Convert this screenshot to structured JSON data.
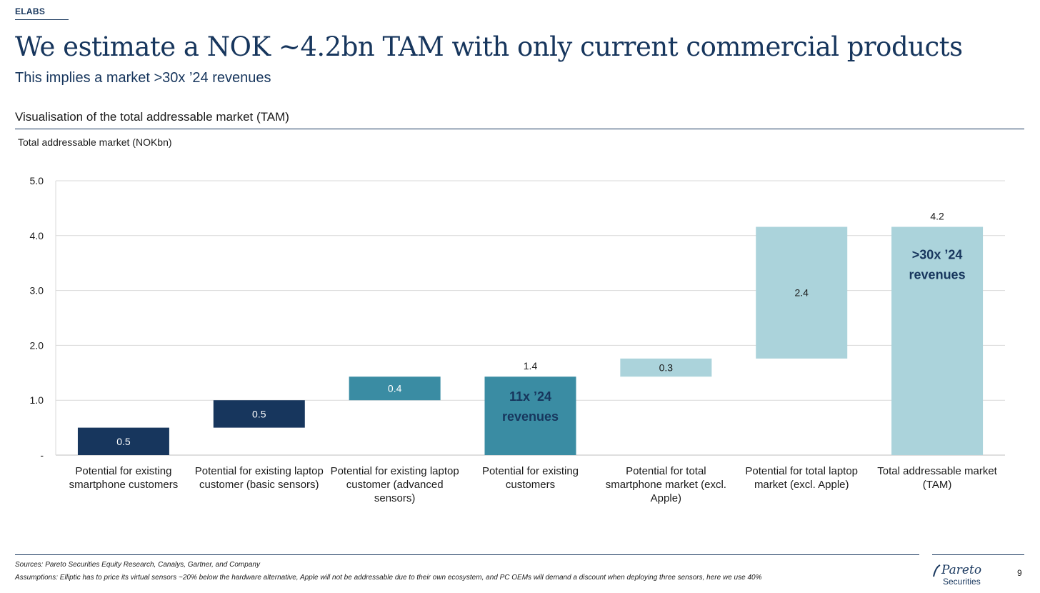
{
  "header": {
    "brand": "ELABS",
    "title": "We estimate a NOK ~4.2bn TAM with only current commercial products",
    "subtitle": "This implies a market >30x ’24 revenues",
    "section_title": "Visualisation of the total addressable market (TAM)"
  },
  "chart_data": {
    "type": "bar",
    "variant": "waterfall",
    "ylabel": "Total addressable market (NOKbn)",
    "ylim": [
      0,
      5
    ],
    "yticks": [
      0,
      1,
      2,
      3,
      4,
      5
    ],
    "ytick_labels": [
      "-",
      "1.0",
      "2.0",
      "3.0",
      "4.0",
      "5.0"
    ],
    "grid": true,
    "categories": [
      "Potential for existing smartphone customers",
      "Potential for existing laptop customer (basic sensors)",
      "Potential for existing laptop customer (advanced sensors)",
      "Potential for existing customers",
      "Potential for total smartphone market (excl. Apple)",
      "Potential for total laptop market (excl. Apple)",
      "Total addressable market (TAM)"
    ],
    "category_lines": [
      [
        "Potential for existing",
        "smartphone customers"
      ],
      [
        "Potential for existing laptop",
        "customer (basic sensors)"
      ],
      [
        "Potential for existing laptop",
        "customer (advanced",
        "sensors)"
      ],
      [
        "Potential for existing",
        "customers"
      ],
      [
        "Potential for total",
        "smartphone market (excl.",
        "Apple)"
      ],
      [
        "Potential for total laptop",
        "market (excl. Apple)"
      ],
      [
        "Total addressable market",
        "(TAM)"
      ]
    ],
    "bars": [
      {
        "base": 0.0,
        "value": 0.5,
        "label": "0.5",
        "label_pos": "inside",
        "color": "#17365d"
      },
      {
        "base": 0.5,
        "value": 0.5,
        "label": "0.5",
        "label_pos": "inside",
        "color": "#17365d"
      },
      {
        "base": 1.0,
        "value": 0.43,
        "label": "0.4",
        "label_pos": "inside",
        "color": "#3a8ca3"
      },
      {
        "base": 0.0,
        "value": 1.43,
        "label": "1.4",
        "label_pos": "above",
        "color": "#3a8ca3",
        "annotation": [
          "11x ’24",
          "revenues"
        ]
      },
      {
        "base": 1.43,
        "value": 0.33,
        "label": "0.3",
        "label_pos": "inside",
        "color": "#abd3db"
      },
      {
        "base": 1.76,
        "value": 2.4,
        "label": "2.4",
        "label_pos": "inside",
        "color": "#abd3db"
      },
      {
        "base": 0.0,
        "value": 4.16,
        "label": "4.2",
        "label_pos": "above",
        "color": "#abd3db",
        "annotation": [
          ">30x ’24",
          "revenues"
        ]
      }
    ]
  },
  "footer": {
    "sources": "Sources: Pareto Securities Equity Research, Canalys, Gartner, and Company",
    "assumptions": "Assumptions: Elliptic has to price its virtual sensors ~20% below the hardware alternative, Apple will not be addressable due to their own ecosystem, and PC OEMs will demand a discount when deploying three sensors, here we use 40%",
    "logo_name": "Pareto",
    "logo_sub": "Securities",
    "page_number": "9"
  },
  "colors": {
    "navy": "#17365d",
    "teal": "#3a8ca3",
    "light_blue": "#abd3db",
    "annotation_text": "#17365d"
  }
}
